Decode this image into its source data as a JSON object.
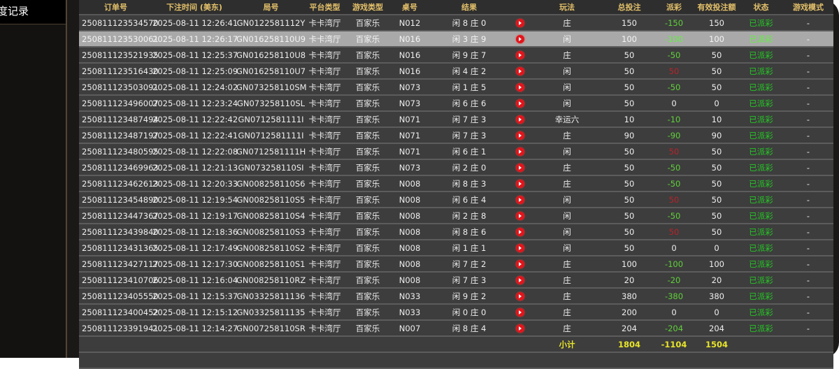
{
  "sidebar": {
    "active_tab": "度记录"
  },
  "table": {
    "headers": [
      "订单号",
      "下注时间 (美东)",
      "局号",
      "平台类型",
      "游戏类型",
      "桌号",
      "结果",
      "",
      "玩法",
      "总投注",
      "派彩",
      "有效投注额",
      "状态",
      "游戏模式"
    ],
    "rows": [
      [
        "250811123534570",
        "2025-08-11 12:26:41",
        "GN0122581112Y",
        "卡卡湾厅",
        "百家乐",
        "N012",
        "闲 8 庄 0",
        "庄",
        "150",
        "-150",
        "150",
        "已派彩",
        "-"
      ],
      [
        "250811123530061",
        "2025-08-11 12:26:17",
        "GN016258110U9",
        "卡卡湾厅",
        "百家乐",
        "N016",
        "闲 3 庄 9",
        "闲",
        "100",
        "-100",
        "100",
        "已派彩",
        "-"
      ],
      [
        "250811123521935",
        "2025-08-11 12:25:37",
        "GN016258110U8",
        "卡卡湾厅",
        "百家乐",
        "N016",
        "闲 9 庄 7",
        "庄",
        "50",
        "-50",
        "50",
        "已派彩",
        "-"
      ],
      [
        "250811123516430",
        "2025-08-11 12:25:09",
        "GN016258110U7",
        "卡卡湾厅",
        "百家乐",
        "N016",
        "闲 4 庄 2",
        "闲",
        "50",
        "50",
        "50",
        "已派彩",
        "-"
      ],
      [
        "250811123503091",
        "2025-08-11 12:24:02",
        "GN073258110SM",
        "卡卡湾厅",
        "百家乐",
        "N073",
        "闲 1 庄 5",
        "闲",
        "50",
        "-50",
        "50",
        "已派彩",
        "-"
      ],
      [
        "250811123496007",
        "2025-08-11 12:23:24",
        "GN073258110SL",
        "卡卡湾厅",
        "百家乐",
        "N073",
        "闲 6 庄 6",
        "闲",
        "50",
        "0",
        "0",
        "已派彩",
        "-"
      ],
      [
        "250811123487494",
        "2025-08-11 12:22:42",
        "GN0712581111I",
        "卡卡湾厅",
        "百家乐",
        "N071",
        "闲 7 庄 3",
        "幸运六",
        "10",
        "-10",
        "10",
        "已派彩",
        "-"
      ],
      [
        "250811123487197",
        "2025-08-11 12:22:41",
        "GN0712581111I",
        "卡卡湾厅",
        "百家乐",
        "N071",
        "闲 7 庄 3",
        "庄",
        "90",
        "-90",
        "90",
        "已派彩",
        "-"
      ],
      [
        "250811123480595",
        "2025-08-11 12:22:08",
        "GN0712581111H",
        "卡卡湾厅",
        "百家乐",
        "N071",
        "闲 6 庄 1",
        "闲",
        "50",
        "50",
        "50",
        "已派彩",
        "-"
      ],
      [
        "250811123469963",
        "2025-08-11 12:21:13",
        "GN073258110SI",
        "卡卡湾厅",
        "百家乐",
        "N073",
        "闲 2 庄 0",
        "庄",
        "50",
        "-50",
        "50",
        "已派彩",
        "-"
      ],
      [
        "250811123462613",
        "2025-08-11 12:20:33",
        "GN008258110S6",
        "卡卡湾厅",
        "百家乐",
        "N008",
        "闲 8 庄 3",
        "庄",
        "50",
        "-50",
        "50",
        "已派彩",
        "-"
      ],
      [
        "250811123454890",
        "2025-08-11 12:19:54",
        "GN008258110S5",
        "卡卡湾厅",
        "百家乐",
        "N008",
        "闲 6 庄 4",
        "闲",
        "50",
        "50",
        "50",
        "已派彩",
        "-"
      ],
      [
        "250811123447367",
        "2025-08-11 12:19:17",
        "GN008258110S4",
        "卡卡湾厅",
        "百家乐",
        "N008",
        "闲 2 庄 8",
        "闲",
        "50",
        "-50",
        "50",
        "已派彩",
        "-"
      ],
      [
        "250811123439840",
        "2025-08-11 12:18:36",
        "GN008258110S3",
        "卡卡湾厅",
        "百家乐",
        "N008",
        "闲 8 庄 6",
        "闲",
        "50",
        "50",
        "50",
        "已派彩",
        "-"
      ],
      [
        "250811123431365",
        "2025-08-11 12:17:49",
        "GN008258110S2",
        "卡卡湾厅",
        "百家乐",
        "N008",
        "闲 1 庄 1",
        "闲",
        "50",
        "0",
        "0",
        "已派彩",
        "-"
      ],
      [
        "250811123427117",
        "2025-08-11 12:17:30",
        "GN008258110S1",
        "卡卡湾厅",
        "百家乐",
        "N008",
        "闲 7 庄 2",
        "庄",
        "100",
        "-100",
        "100",
        "已派彩",
        "-"
      ],
      [
        "250811123410706",
        "2025-08-11 12:16:04",
        "GN008258110RZ",
        "卡卡湾厅",
        "百家乐",
        "N008",
        "闲 7 庄 3",
        "庄",
        "20",
        "-20",
        "20",
        "已派彩",
        "-"
      ],
      [
        "250811123405550",
        "2025-08-11 12:15:37",
        "GN03325811136",
        "卡卡湾厅",
        "百家乐",
        "N033",
        "闲 9 庄 2",
        "庄",
        "380",
        "-380",
        "380",
        "已派彩",
        "-"
      ],
      [
        "250811123400452",
        "2025-08-11 12:15:12",
        "GN03325811135",
        "卡卡湾厅",
        "百家乐",
        "N033",
        "闲 0 庄 0",
        "庄",
        "200",
        "0",
        "0",
        "已派彩",
        "-"
      ],
      [
        "250811123391941",
        "2025-08-11 12:14:27",
        "GN007258110SR",
        "卡卡湾厅",
        "百家乐",
        "N007",
        "闲 8 庄 4",
        "庄",
        "204",
        "-204",
        "204",
        "已派彩",
        "-"
      ]
    ],
    "highlighted_row": 1,
    "subtotal": {
      "label": "小计",
      "total_bet": "1804",
      "payout": "-1104",
      "valid_bet": "1504"
    }
  },
  "colors": {
    "header_text": "#e3c06a",
    "payout_negative": "#5fd03a",
    "payout_positive": "#b8232a",
    "status": "#26c526",
    "subtotal": "#e8e42a",
    "play_icon": "#e0161c"
  }
}
